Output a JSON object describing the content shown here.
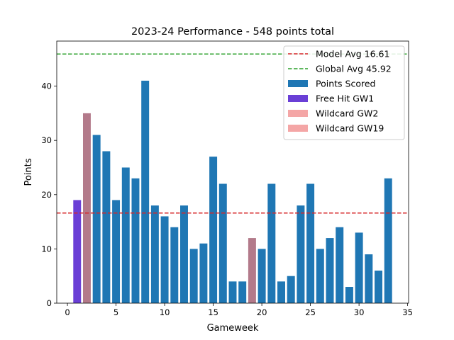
{
  "chart_data": {
    "type": "bar",
    "title": "2023-24 Performance - 548 points total",
    "xlabel": "Gameweek",
    "ylabel": "Points",
    "xlim": [
      -1.1,
      35.1
    ],
    "ylim": [
      0,
      48.3
    ],
    "xticks": [
      0,
      5,
      10,
      15,
      20,
      25,
      30,
      35
    ],
    "yticks": [
      0,
      10,
      20,
      30,
      40
    ],
    "grid": false,
    "legend_position": "top-right",
    "x": [
      1,
      2,
      3,
      4,
      5,
      6,
      7,
      8,
      9,
      10,
      11,
      12,
      13,
      14,
      15,
      16,
      17,
      18,
      19,
      20,
      21,
      22,
      23,
      24,
      25,
      26,
      27,
      28,
      29,
      30,
      31,
      32,
      33
    ],
    "values": [
      19,
      35,
      31,
      28,
      19,
      25,
      23,
      41,
      18,
      16,
      14,
      18,
      10,
      11,
      27,
      22,
      4,
      4,
      12,
      10,
      22,
      4,
      5,
      18,
      22,
      10,
      12,
      14,
      3,
      13,
      9,
      6,
      23
    ],
    "series": [
      {
        "name": "Points Scored",
        "color": "#1f77b4"
      },
      {
        "name": "Free Hit GW1",
        "color": "#6a3fd6",
        "x": 1
      },
      {
        "name": "Wildcard GW2",
        "color": "#b37a8a",
        "legend_color": "#f4a6a6",
        "x": 2
      },
      {
        "name": "Wildcard GW19",
        "color": "#b37a8a",
        "legend_color": "#f4a6a6",
        "x": 19
      }
    ],
    "reference_lines": [
      {
        "name": "Model Avg 16.61",
        "value": 16.61,
        "color": "#d62728",
        "style": "dashed"
      },
      {
        "name": "Global Avg 45.92",
        "value": 45.92,
        "color": "#2ca02c",
        "style": "dashed"
      }
    ]
  }
}
